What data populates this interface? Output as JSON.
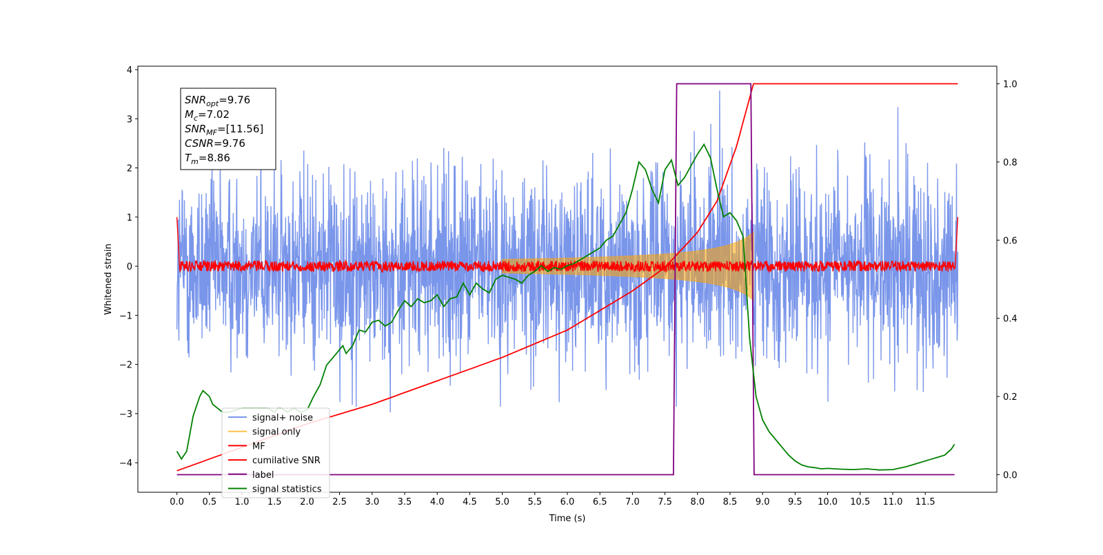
{
  "chart_data": {
    "type": "line",
    "xlabel": "Time (s)",
    "ylabel": "Whitened strain",
    "xlim": [
      -0.6,
      12.6
    ],
    "ylim": [
      -4.6,
      4.07
    ],
    "ylim_right": [
      -0.045,
      1.045
    ],
    "xticks": [
      "0.0",
      "0.5",
      "1.0",
      "1.5",
      "2.0",
      "2.5",
      "3.0",
      "3.5",
      "4.0",
      "4.5",
      "5.0",
      "5.5",
      "6.0",
      "6.5",
      "7.0",
      "7.5",
      "8.0",
      "8.5",
      "9.0",
      "9.5",
      "10.0",
      "10.5",
      "11.0",
      "11.5"
    ],
    "yticks_left": [
      "4",
      "3",
      "2",
      "1",
      "0",
      "−1",
      "−2",
      "−3",
      "−4"
    ],
    "yticks_right": [
      "1.0",
      "0.8",
      "0.6",
      "0.4",
      "0.2",
      "0.0"
    ],
    "annotation": [
      {
        "sym": "SNR",
        "sub": "opt",
        "rest": "=9.76"
      },
      {
        "sym": "M",
        "sub": "c",
        "rest": "=7.02"
      },
      {
        "sym": "SNR",
        "sub": "MF",
        "rest": "=[11.56]"
      },
      {
        "sym": "CSNR",
        "sub": "",
        "rest": "=9.76"
      },
      {
        "sym": "T",
        "sub": "m",
        "rest": "=8.86"
      }
    ],
    "legend_position": "lower-left",
    "series": [
      {
        "name": "signal+ noise",
        "color": "#4169e1",
        "axis": "left",
        "noise_band": [
          -2.0,
          2.1
        ],
        "x_range": [
          0.0,
          12.0
        ]
      },
      {
        "name": "signal only",
        "color": "#ffa500",
        "axis": "left",
        "chirp_start": 5.0,
        "chirp_end": 8.86,
        "peak_amplitude": 0.7
      },
      {
        "name": "MF",
        "color": "#ff0000",
        "axis": "left",
        "noise_band": [
          -0.12,
          0.12
        ],
        "edge_peak": 1.0
      },
      {
        "name": "cumilative SNR",
        "color": "#ff0000",
        "axis": "right",
        "x": [
          0.0,
          1.0,
          2.0,
          3.0,
          4.0,
          5.0,
          6.0,
          7.0,
          7.5,
          8.0,
          8.3,
          8.6,
          8.86,
          12.0
        ],
        "y": [
          0.01,
          0.07,
          0.13,
          0.18,
          0.24,
          0.3,
          0.37,
          0.47,
          0.53,
          0.62,
          0.7,
          0.84,
          1.0,
          1.0
        ]
      },
      {
        "name": "label",
        "color": "#800080",
        "axis": "right",
        "x": [
          0.0,
          7.63,
          7.68,
          8.82,
          8.87,
          11.95
        ],
        "y": [
          0.0,
          0.0,
          1.0,
          1.0,
          0.0,
          0.0
        ]
      },
      {
        "name": "signal statistics",
        "color": "#008000",
        "axis": "right",
        "x": [
          0.0,
          0.07,
          0.15,
          0.25,
          0.35,
          0.4,
          0.5,
          0.55,
          0.7,
          0.8,
          0.9,
          1.0,
          1.1,
          1.2,
          1.3,
          1.4,
          1.5,
          1.55,
          1.6,
          1.7,
          1.8,
          1.9,
          2.0,
          2.1,
          2.2,
          2.3,
          2.4,
          2.5,
          2.55,
          2.6,
          2.7,
          2.8,
          2.9,
          3.0,
          3.1,
          3.2,
          3.3,
          3.4,
          3.5,
          3.6,
          3.7,
          3.8,
          3.9,
          4.0,
          4.1,
          4.2,
          4.3,
          4.4,
          4.5,
          4.6,
          4.7,
          4.8,
          4.9,
          5.0,
          5.1,
          5.2,
          5.3,
          5.4,
          5.5,
          5.6,
          5.7,
          5.8,
          5.9,
          6.0,
          6.1,
          6.2,
          6.3,
          6.4,
          6.5,
          6.6,
          6.7,
          6.8,
          6.9,
          7.0,
          7.1,
          7.2,
          7.3,
          7.4,
          7.5,
          7.6,
          7.7,
          7.8,
          7.9,
          8.0,
          8.1,
          8.2,
          8.3,
          8.4,
          8.5,
          8.6,
          8.7,
          8.8,
          8.9,
          9.0,
          9.1,
          9.2,
          9.3,
          9.4,
          9.5,
          9.6,
          9.7,
          9.8,
          9.9,
          10.0,
          10.2,
          10.4,
          10.6,
          10.8,
          11.0,
          11.2,
          11.4,
          11.6,
          11.7,
          11.8,
          11.9,
          11.95
        ],
        "y": [
          0.06,
          0.04,
          0.06,
          0.15,
          0.2,
          0.215,
          0.2,
          0.18,
          0.16,
          0.16,
          0.165,
          0.17,
          0.17,
          0.17,
          0.17,
          0.17,
          0.16,
          0.17,
          0.17,
          0.16,
          0.17,
          0.16,
          0.165,
          0.2,
          0.23,
          0.28,
          0.3,
          0.32,
          0.33,
          0.31,
          0.33,
          0.37,
          0.365,
          0.39,
          0.395,
          0.38,
          0.39,
          0.42,
          0.445,
          0.43,
          0.45,
          0.44,
          0.445,
          0.46,
          0.43,
          0.45,
          0.455,
          0.49,
          0.46,
          0.49,
          0.475,
          0.465,
          0.5,
          0.51,
          0.505,
          0.5,
          0.49,
          0.51,
          0.52,
          0.535,
          0.52,
          0.53,
          0.525,
          0.535,
          0.54,
          0.55,
          0.56,
          0.57,
          0.58,
          0.6,
          0.61,
          0.64,
          0.67,
          0.73,
          0.8,
          0.78,
          0.73,
          0.695,
          0.78,
          0.805,
          0.74,
          0.76,
          0.79,
          0.82,
          0.845,
          0.81,
          0.73,
          0.66,
          0.67,
          0.65,
          0.61,
          0.35,
          0.2,
          0.14,
          0.11,
          0.09,
          0.07,
          0.05,
          0.035,
          0.025,
          0.02,
          0.018,
          0.015,
          0.016,
          0.014,
          0.013,
          0.015,
          0.012,
          0.013,
          0.02,
          0.03,
          0.04,
          0.045,
          0.05,
          0.065,
          0.078
        ]
      }
    ]
  }
}
